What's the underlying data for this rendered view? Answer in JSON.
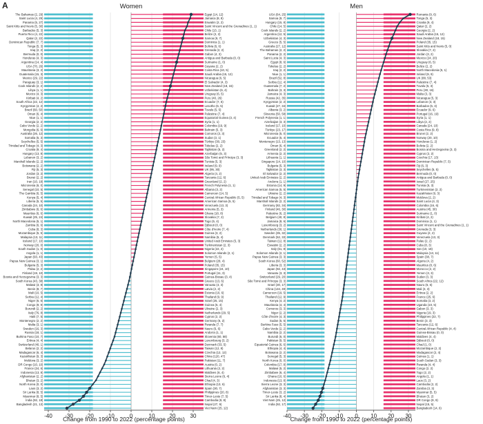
{
  "panel_letter": "A",
  "colors": {
    "increase": "#e8336d",
    "decrease": "#4fbfcf",
    "dot": "#1f3a4d",
    "grid": "#d9d9d9"
  },
  "chart_data": [
    {
      "type": "bar",
      "title": "Women",
      "xlabel": "Change from 1990 to 2022 (percentage points)",
      "xlim": [
        -42,
        35
      ],
      "xticks": [
        -40,
        -30,
        -20,
        -10,
        0,
        10,
        20,
        30
      ],
      "left_labels": [
        "The Bahamas (2, 29)",
        "Saint Lucia (4, 29)",
        "Panama (5, 27)",
        "Saint Kitts and Nevis (5, 30)",
        "Barbados (5, 3)",
        "Puerto Rico (4, 22)",
        "Qatar (2, 22)",
        "Dominican Republic (7, 7)",
        "Tonga (5, 3)",
        "Iraq (2, 2)",
        "Bermuda (0, 0)",
        "Honduras (4, 3)",
        "Argentina (14, 4)",
        "USA (70, 26)",
        "Mauritania (3, 2)",
        "Guatemala (15, 3)",
        "Mexico (29, 22)",
        "Paraguay (3, 1)",
        "Cook Islands (2, 2)",
        "Libya (1, 1)",
        "Mexico (4, 3)",
        "Kiribati (4, 2)",
        "South Africa (22, 12)",
        "Kyrgyzstan (4, 2)",
        "Brazil (60, 50)",
        "Oman (6, 4)",
        "Niue (1, 1)",
        "Georgia (2, 2)",
        "Cabo Verde (2, 2)",
        "Mongolia (6, 6)",
        "Australia (26, 12)",
        "Somalia (5, 3)",
        "Seychelles (5, 5)",
        "Trinidad and Tobago (4, 3)",
        "Croatia (9, 4)",
        "Hungary (13, 8)",
        "Lebanon (3, 2)",
        "Marshall Islands (2, 2)",
        "Botswana (2, 2)",
        "Fiji (5, 3)",
        "Jordan (3, 2)",
        "Brunei (2, 2)",
        "Iran (10, 18)",
        "Micronesia (6, 0)",
        "Senegal (10, 5)",
        "The Gambia (6, 5)",
        "Kenya (5, 4)",
        "Liberia (5, 5)",
        "Canada (24, 10)",
        "Zimbabwe (6, 6)",
        "Mauritius (6, 6)",
        "Kuwait (25, 24)",
        "North Macedonia (5, 1)",
        "Zambia (6, 6)",
        "Cuba (8, 3)",
        "Mozambique (5, 5)",
        "Malaysia (13, 11)",
        "Iceland (17, 10)",
        "Norway (20, 0)",
        "South Sudan (1, 0)",
        "Angola (1, 1)",
        "Japan (93, 43)",
        "Papua New Guinea (3, 1)",
        "Bulgaria (5, 3)",
        "Palau (2, 2)",
        "Finland (19, 10)",
        "Bosnia and Herzegovina (3, 3)",
        "South Korea (43, 38)",
        "Malawi (3, 8)",
        "Benin (8, 7)",
        "Mali (10, 5)",
        "Serbia (12, 4)",
        "Niger (6, 6)",
        "Congo (9, 9)",
        "Burundi (2, 2)",
        "Italy (76, 8)",
        "Haiti (7, 5)",
        "Montenegro (2, 2)",
        "Malta (3, 1)",
        "Sweden (16, 3)",
        "Russia (18, 1)",
        "Burkina Faso (10, 7)",
        "Eritrea (4, 4)",
        "Switzerland (40, 1)",
        "Belarus (2, 2)",
        "Madagascar (6, 4)",
        "Kazakhstan (9, 3)",
        "Moldova (3, 2)",
        "DR Congo (10, 10)",
        "France (24, 6)",
        "Indonesia (13, 8)",
        "Afghanistan (2, 2)",
        "Bhutan (3, 2)",
        "North Korea (0, 0)",
        "Laos (3, 2)",
        "Sri Lanka (8, 5)",
        "Myanmar (8, 5)",
        "India (92, 18)",
        "Bangladesh (21, 13)"
      ],
      "right_labels": [
        "Egypt (14, 12)",
        "Jamaica (8, 8)",
        "Eswatini (2, 2)",
        "Saint Vincent and the Grenadines (1, 1)",
        "Chile (13, 1)",
        "Belize (2, 2)",
        "Samoa (9, 7)",
        "Dominica (1, 1)",
        "Bolivia (6, 6)",
        "Grenada (2, 2)",
        "Gabon (4, 3)",
        "Antigua and Barbuda (0, 0)",
        "Suriname (1, 0)",
        "Guyana (2, 2)",
        "Costa Rica (10, 5)",
        "Saudi Arabia (15, 12)",
        "Nicaragua (6, 5)",
        "El Salvador (4, 3)",
        "New Zealand (18, 15)",
        "Uzbekistan (6, 4)",
        "Uruguay (6, 5)",
        "Peru (40, 26)",
        "Ecuador (7, 6)",
        "Lesotho (5, 5)",
        "Tuvalu (5, 5)",
        "Palestine (7, 4)",
        "Equatorial Guinea (3, 4)",
        "Syria (1, 1)",
        "Colombia (19, 9)",
        "Bahrain (5, 3)",
        "Comoros (3, 3)",
        "Sudan (3, 1)",
        "Türkiye (30, 23)",
        "Tokelau (2, 2)",
        "Tajikistan (5, 2)",
        "Azerbaijan (5, 3)",
        "São Tomé and Príncipe (3, 3)",
        "Tunisia (5, 3)",
        "Ireland (9, 9)",
        "UK (95, 30)",
        "Algeria (4, 2)",
        "Tanzania (12, 6)",
        "Greenland (2, 2)",
        "French Polynesia (1, 1)",
        "Albania (3, 2)",
        "Cameroon (14, 5)",
        "Central African Republic (5, 5)",
        "American Samoa (5, 5)",
        "Venezuela (13, 3)",
        "Armenia (5, 3)",
        "Ghana (18, 8)",
        "Slovakia (7, 2)",
        "Togo (5, 4)",
        "Djibouti (0, 0)",
        "Côte d'Ivoire (7, 4)",
        "Guinea (3, 2)",
        "Namibia (5, 4)",
        "United Arab Emirates (5, 3)",
        "Turkmenistan (2, 3)",
        "Nigeria (22, 2)",
        "Solomon Islands (2, 1)",
        "Yemen (5, 5)",
        "Belgium (28, 4)",
        "Poland (35, 15)",
        "Singapore (24, 10)",
        "Portugal (11, 3)",
        "Guinea-Bissau (3, 4)",
        "Greece (13, 6)",
        "Vanuatu (4, 3)",
        "Latvia (2, 2)",
        "Estonia (10, 6)",
        "Thailand (9, 9)",
        "Israel (25, 15)",
        "Guinea (5, 4)",
        "Ukraine (2, 3)",
        "Netherlands (29, 5)",
        "Cyprus (2, 2)",
        "Germany (6, 2)",
        "Rwanda (7, 7)",
        "Nauru (6, 6)",
        "Andorra (1, 1)",
        "Slovenia (60, 58)",
        "Luxembourg (3, 2)",
        "Denmark (33, 5)",
        "Taiwan (12, 8)",
        "Czechia (12, 12)",
        "China (120, 47)",
        "Pakistan (11, 7)",
        "Austria (0, 2)",
        "Lithuania (2, 2)",
        "Maldives (6, 4)",
        "Sierra Leone (6, 4)",
        "Chad (4, 3)",
        "Ethiopia (13, 6)",
        "Spain (30, 7)",
        "Philippines (20, 8)",
        "Timor-Leste (7, 5)",
        "Cambodia (8, 8)",
        "Nepal (27, 9)",
        "Viet Nam (25, 12)"
      ],
      "values": [
        29,
        28.5,
        27.5,
        27,
        26,
        25.5,
        25,
        24.5,
        24,
        23.5,
        23,
        22.5,
        22,
        21.5,
        21,
        20.5,
        20,
        19.5,
        19,
        18.5,
        18,
        17.5,
        17,
        16.6,
        16.2,
        15.8,
        15.4,
        15,
        14.6,
        14.2,
        13.8,
        13.4,
        13,
        12.6,
        12.2,
        11.8,
        11.4,
        11,
        10.6,
        10.2,
        9.8,
        9.4,
        9,
        8.6,
        8.2,
        7.8,
        7.4,
        7,
        6.6,
        6.2,
        5.8,
        5.4,
        5,
        4.6,
        4.2,
        3.8,
        3.4,
        3,
        2.6,
        2.2,
        1.8,
        1.4,
        1,
        0.6,
        0.2,
        -0.2,
        -0.6,
        -1,
        -1.5,
        -2,
        -2.5,
        -3,
        -3.5,
        -4,
        -4.5,
        -5,
        -5.5,
        -6,
        -6.5,
        -7,
        -7.5,
        -8,
        -8.7,
        -9.4,
        -10.1,
        -10.8,
        -11.5,
        -12.2,
        -13,
        -14,
        -15,
        -16,
        -17,
        -18.5,
        -20,
        -21.5,
        -23,
        -25,
        -28,
        -31
      ]
    },
    {
      "type": "bar",
      "title": "Men",
      "xlabel": "Change from 1990 to 2022 (percentage points)",
      "xlim": [
        -40,
        34
      ],
      "xticks": [
        -40,
        -30,
        -20,
        -10,
        0,
        10,
        20,
        30
      ],
      "left_labels": [
        "USA (64, 25)",
        "Samoa (9, 7)",
        "Hungary (15, 8)",
        "Chile (14, 5)",
        "Cook Islands (2, 2)",
        "Argentina (12, 5)",
        "Uzbekistan (4, 3)",
        "Greece (5, 5)",
        "Australia (27, 12)",
        "The Bahamas (2, 2)",
        "Panama (2, 2)",
        "Saint Lucia (4, 3)",
        "Egypt (8, 6)",
        "Tokelau (2, 2)",
        "Iraq (2, 2)",
        "Niue (1, 1)",
        "Brazil (52, 8)",
        "Serbia (12, 4)",
        "Guatemala (7, 2)",
        "Bahrain (3, 3)",
        "Jamaica (4, 3)",
        "Russia (42, 35)",
        "Kyrgyzstan (2, 2)",
        "Kuwait (27, 34)",
        "Albania (3, 2)",
        "Slovenia (50, 58)",
        "French Polynesia (1, 1)",
        "Azerbaijan (3, 3)",
        "Iceland (17, 10)",
        "Türkiye (23, 17)",
        "Micronesia (5, 0)",
        "Ecuador (5, 4)",
        "Montenegro (13, 13)",
        "Oman (6, 4)",
        "Greenland (2, 2)",
        "Armenia (2, 2)",
        "Lithuania (1, 1)",
        "Singapore (14, 10)",
        "Bulgaria (5, 3)",
        "Tajikistan (3, 3)",
        "El Salvador (2, 2)",
        "United Arab Emirates (2, 2)",
        "Andorra (1, 1)",
        "Estonia (14, 9)",
        "American Samoa (5, 5)",
        "Ukraine (2, 2)",
        "Trinidad and Tobago (4, 3)",
        "Marshall Islands (2, 2)",
        "Germany (82, 34)",
        "Finland (46, 30)",
        "Palestine (6, 2)",
        "Belgium (40, 8)",
        "Jamaica (8, 6)",
        "Luxembourg (3, 2)",
        "Netherlands (30, 1)",
        "Sweden (35, 32)",
        "Denmark (52, 33)",
        "Taiwan (12, 8)",
        "Eswatini (2, 2)",
        "Italy (61, 8)",
        "Solomon Islands (2, 1)",
        "Papua New Guinea (3, 3)",
        "South Korea (60, 52)",
        "Liberia (3, 3)",
        "Japan (92, 43)",
        "Vanuatu (3, 3)",
        "Switzerland (29, 20)",
        "São Tomé and Príncipe (3, 3)",
        "Israel (30, 17)",
        "China (134, 49)",
        "Cameroon (19, 5)",
        "Thailand (12, 9)",
        "Kenya (4, 2)",
        "Mauritania (4, 4)",
        "Comoros (3, 3)",
        "Niger (2, 2)",
        "Côte d'Ivoire (4, 3)",
        "Sudan (5, 5)",
        "Burkina Faso (5, 5)",
        "Cabo Verde (2, 2)",
        "Namibia (2, 2)",
        "Burundi (6, 0)",
        "Pakistan (9, 5)",
        "Equatorial Guinea (6, 6)",
        "Ethiopia (4, 4)",
        "Botswana (2, 2)",
        "Senegal (5, 3)",
        "North Korea (0, 0)",
        "Colombia (17, 8)",
        "Malawi (5, 2)",
        "Zimbabwe (6, 4)",
        "Ghana (10, 6)",
        "Indonesia (13, 8)",
        "Sierra Leone (3, 3)",
        "Afghanistan (3, 3)",
        "Timor-Leste (3, 2)",
        "Sri Lanka (8, 4)",
        "Viet Nam (25, 12)",
        "India (92, 17)"
      ],
      "right_labels": [
        "Romania (9, 6)",
        "Tonga (5, 3)",
        "Croatia (9, 4)",
        "Qatar (2, 2)",
        "Georgia (2, 2)",
        "Saudi Arabia (15, 12)",
        "New Zealand (18, 15)",
        "Poland (35, 15)",
        "Saint Kitts and Nevis (5, 0)",
        "Slovakia (7, 2)",
        "Jordan (3, 2)",
        "Mexico (24, 20)",
        "Uruguay (6, 5)",
        "Belize (2, 2)",
        "North Macedonia (5, 1)",
        "Ireland (9, 9)",
        "UK (88, 53)",
        "Palestine (7, 4)",
        "Tuvalu (5, 3)",
        "Peru (30, 16)",
        "Malta (3, 3)",
        "Nicaragua (5, 3)",
        "Lebanon (3, 3)",
        "Barbados (5, 3)",
        "Ecuador (9, 6)",
        "Portugal (16, 19)",
        "Syria (1, 1)",
        "Libya (2, 2)",
        "Canada (24, 10)",
        "Costa Rica (9, 8)",
        "Brunei (2, 2)",
        "Norway (20, 10)",
        "Honduras (1, 2)",
        "Bolivia (2, 2)",
        "Bosnia and Herzegovina (3, 3)",
        "Cyprus (2, 2)",
        "Czechia (17, 13)",
        "Dominican Republic (7, 5)",
        "Fiji (6, 3)",
        "Seychelles (5, 5)",
        "Bermuda (0, 0)",
        "Antigua and Barbuda (0, 0)",
        "Israel (27, 25)",
        "Tunisia (5, 3)",
        "Turkmenistan (2, 2)",
        "Kazakhstan (9, 3)",
        "Moldova (2, 2)",
        "Saint Lucia (4, 3)",
        "Colombia (16, 6)",
        "Austria (45, 30)",
        "Suriname (1, 0)",
        "Kiribati (4, 2)",
        "Dominica (1, 1)",
        "Saint Vincent and the Grenadines (1, 1)",
        "Grenada (3, 3)",
        "Guyana (2, 2)",
        "Venezuela (13, 3)",
        "Palau (2, 2)",
        "Cuba (8, 3)",
        "Iran (10, 18)",
        "Malaysia (13, 11)",
        "Spain (38, 7)",
        "Algeria (4, 2)",
        "Mauritius (8, 6)",
        "Morocco (2, 2)",
        "Yemen (3, 3)",
        "Sudan (3, 3)",
        "South Africa (22, 12)",
        "Nauru (6, 6)",
        "Mali (3, 3)",
        "Eritrea (2, 2)",
        "France (25, 6)",
        "Somalia (3, 2)",
        "Uganda (10, 5)",
        "Gabon (3, 3)",
        "Nigeria (19, 3)",
        "Philippines (22, 7)",
        "Benin (3, 3)",
        "Tanzania (12, 6)",
        "Central African Republic (4, 4)",
        "Guinea-Bissau (0, 0)",
        "Maldives (4, 4)",
        "Djibouti (0, 0)",
        "Chad (1, 0)",
        "Mozambique (2, 2)",
        "Madagascar (2, 4)",
        "Guinea (1, 1)",
        "South Sudan (3, 3)",
        "Rwanda (4, 4)",
        "Congo (2, 2)",
        "Togo (2, 2)",
        "Angola (1, 1)",
        "Laos (3, 2)",
        "Cambodia (2, 2)",
        "Zambia (3, 3)",
        "Myanmar (5, 5)",
        "Bhutan (3, 2)",
        "DR Congo (9, 9)",
        "Nepal (15, 5)",
        "Bangladesh (14, 6)"
      ],
      "values": [
        31,
        27,
        25,
        23.5,
        22.5,
        21.5,
        20.5,
        19.5,
        18.7,
        17.9,
        17.1,
        16.4,
        15.7,
        15,
        14.3,
        13.6,
        13,
        12.4,
        11.8,
        11.2,
        10.6,
        10,
        9.5,
        9,
        8.5,
        8,
        7.5,
        7,
        6.5,
        6,
        5.5,
        5,
        4.6,
        4.2,
        3.8,
        3.4,
        3,
        2.6,
        2.2,
        1.8,
        1.4,
        1,
        0.7,
        0.4,
        0.1,
        -0.2,
        -0.5,
        -0.8,
        -1.1,
        -1.4,
        -1.7,
        -2,
        -2.3,
        -2.6,
        -2.9,
        -3.2,
        -3.5,
        -3.8,
        -4.1,
        -4.4,
        -4.7,
        -5,
        -5.3,
        -5.6,
        -5.9,
        -6.2,
        -6.5,
        -6.8,
        -7.1,
        -7.4,
        -7.7,
        -8,
        -8.4,
        -8.8,
        -9.2,
        -9.6,
        -10,
        -10.4,
        -10.8,
        -11.2,
        -11.6,
        -12,
        -12.5,
        -13,
        -13.5,
        -14,
        -14.5,
        -15,
        -15.6,
        -16.2,
        -16.8,
        -17.4,
        -18,
        -18.7,
        -19.4,
        -20.2,
        -21,
        -22,
        -23.5,
        -25
      ]
    }
  ]
}
